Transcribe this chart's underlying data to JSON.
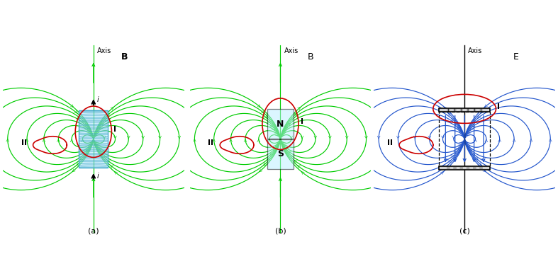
{
  "fig_width": 7.87,
  "fig_height": 3.93,
  "bg_color": "#ffffff",
  "green_color": "#00cc00",
  "blue_color": "#2255cc",
  "red_color": "#cc0000",
  "cyan_color": "#b8eeff",
  "black_color": "#000000",
  "lw_field": 0.85,
  "lw_surface": 1.2,
  "arrow_ms": 7,
  "panel_a_label": "(a)",
  "panel_b_label": "(b)",
  "panel_c_label": "(c)"
}
